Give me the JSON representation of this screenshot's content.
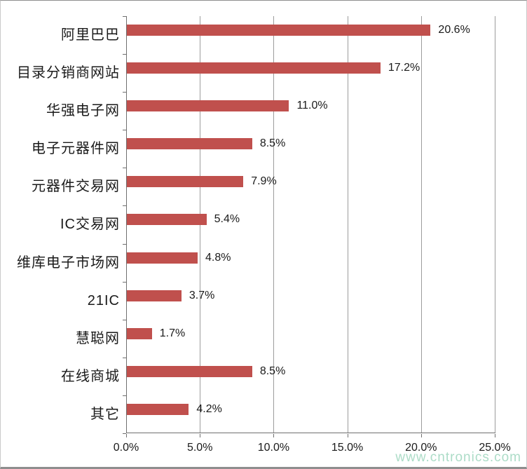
{
  "chart_data": {
    "type": "bar",
    "orientation": "horizontal",
    "title": "",
    "xlabel": "",
    "ylabel": "",
    "categories": [
      "阿里巴巴",
      "目录分销商网站",
      "华强电子网",
      "电子元器件网",
      "元器件交易网",
      "IC交易网",
      "维库电子市场网",
      "21IC",
      "慧聪网",
      "在线商城",
      "其它"
    ],
    "values": [
      20.6,
      17.2,
      11.0,
      8.5,
      7.9,
      5.4,
      4.8,
      3.7,
      1.7,
      8.5,
      4.2
    ],
    "value_labels": [
      "20.6%",
      "17.2%",
      "11.0%",
      "8.5%",
      "7.9%",
      "5.4%",
      "4.8%",
      "3.7%",
      "1.7%",
      "8.5%",
      "4.2%"
    ],
    "x_ticks": [
      "0.0%",
      "5.0%",
      "10.0%",
      "15.0%",
      "20.0%",
      "25.0%"
    ],
    "xlim": [
      0,
      25
    ],
    "grid": true,
    "legend": false,
    "bar_color": "#C0504D",
    "axis_color": "#6F6F6F",
    "gridline_color": "#9C9C9C",
    "label_color": "#1A1A1A"
  },
  "watermark": {
    "text": "www.cntronics.com",
    "color": "#9ED6BE"
  }
}
